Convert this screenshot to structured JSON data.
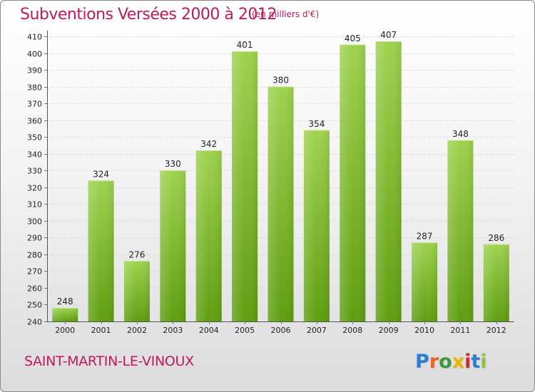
{
  "header": {
    "title": "Subventions Versées 2000 à 2012",
    "subtitle": "(en milliers d'€)"
  },
  "footer": {
    "commune": "SAINT-MARTIN-LE-VINOUX",
    "logo_text": "Proxiti"
  },
  "colors": {
    "bar_light": "#9fd24f",
    "bar_dark": "#5f9e10",
    "title": "#c2185b",
    "logo_letters": [
      "#2a7fd4",
      "#e8622c",
      "#3a9a3a",
      "#f0b400",
      "#d9262c",
      "#2a7fd4",
      "#8cc63f"
    ]
  },
  "chart_data": {
    "type": "bar",
    "title": "Subventions Versées 2000 à 2012",
    "subtitle": "(en milliers d'€)",
    "categories": [
      "2000",
      "2001",
      "2002",
      "2003",
      "2004",
      "2005",
      "2006",
      "2007",
      "2008",
      "2009",
      "2010",
      "2011",
      "2012"
    ],
    "values": [
      248,
      324,
      276,
      330,
      342,
      401,
      380,
      354,
      405,
      407,
      287,
      348,
      286
    ],
    "data_labels": [
      "248",
      "324",
      "276",
      "330",
      "342",
      "401",
      "380",
      "354",
      "405",
      "407",
      "287",
      "348",
      "286"
    ],
    "ylim": [
      240,
      410
    ],
    "yticks": [
      240,
      250,
      260,
      270,
      280,
      290,
      300,
      310,
      320,
      330,
      340,
      350,
      360,
      370,
      380,
      390,
      400,
      410
    ],
    "ytick_labels": [
      "240",
      "250",
      "260",
      "270",
      "280",
      "290",
      "300",
      "310",
      "320",
      "330",
      "340",
      "350",
      "360",
      "370",
      "380",
      "390",
      "400",
      "410"
    ],
    "grid": "horizontal",
    "xlabel": "",
    "ylabel": ""
  }
}
